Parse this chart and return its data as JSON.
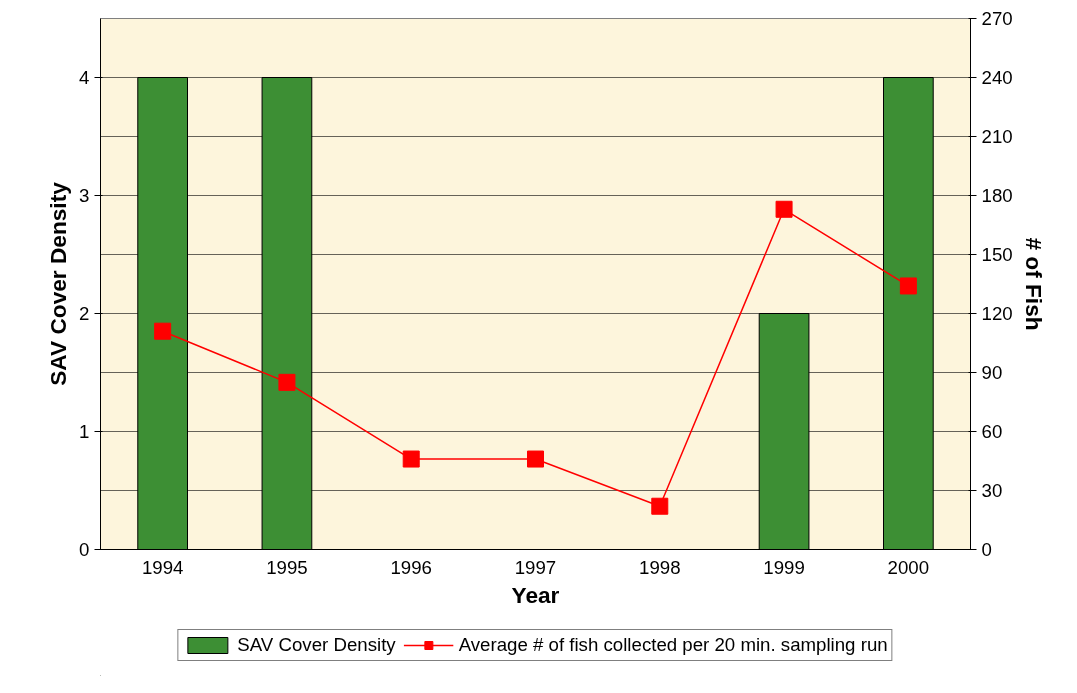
{
  "chart_data": {
    "type": "bar",
    "xlabel": "Year",
    "ylabel": "SAV Cover Density",
    "y2label": "# of Fish",
    "categories": [
      "1994",
      "1995",
      "1996",
      "1997",
      "1998",
      "1999",
      "2000"
    ],
    "series": [
      {
        "name": "SAV Cover Density",
        "color": "#3d8f34",
        "values": [
          4,
          4,
          0,
          0,
          0,
          2,
          4
        ]
      },
      {
        "name": "Average # of fish collected per 20 min. sampling run",
        "type": "line",
        "axis": "y2",
        "color": "#ff0000",
        "marker": "square",
        "values": [
          111,
          85,
          46,
          46,
          22,
          173,
          134
        ]
      }
    ],
    "ylim": [
      0,
      4.5
    ],
    "yticks": [
      0,
      1,
      2,
      3,
      4
    ],
    "y2lim": [
      0,
      270
    ],
    "y2ticks": [
      0,
      30,
      60,
      90,
      120,
      150,
      180,
      210,
      240,
      270
    ],
    "grid": "y",
    "legend": "bottom"
  }
}
